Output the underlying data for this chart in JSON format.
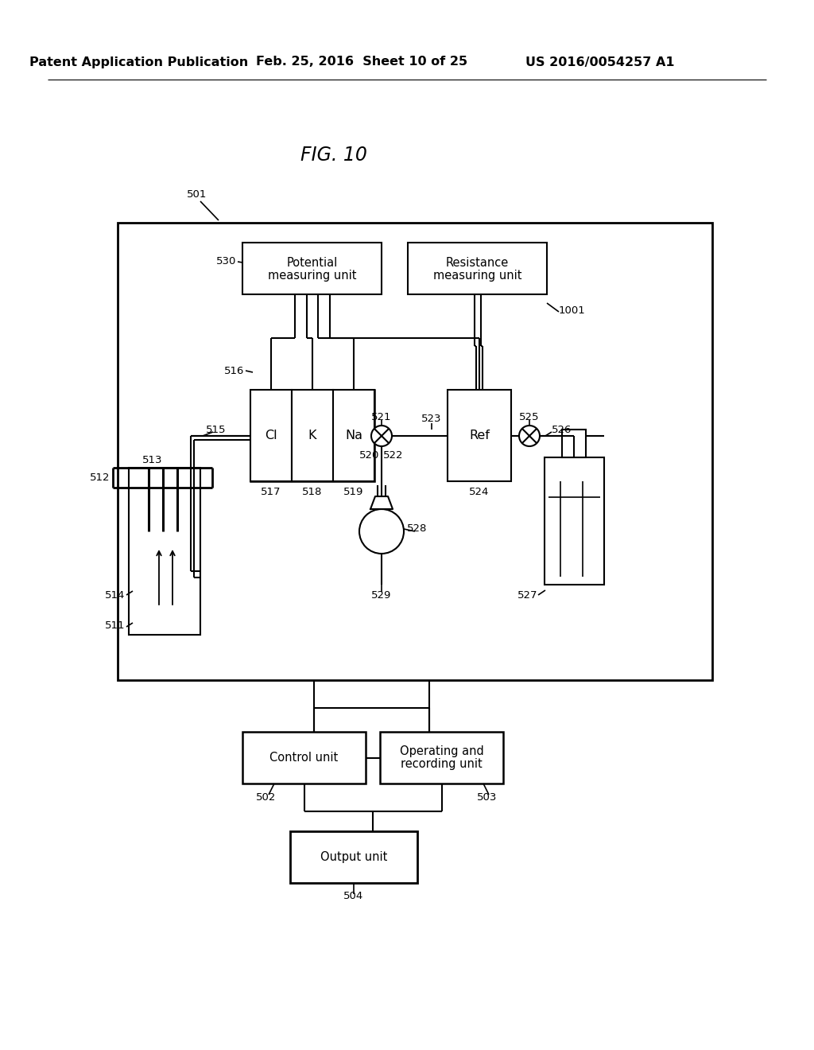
{
  "title": "FIG. 10",
  "header_left": "Patent Application Publication",
  "header_center": "Feb. 25, 2016  Sheet 10 of 25",
  "header_right": "US 2016/0054257 A1",
  "bg_color": "#ffffff",
  "line_color": "#000000",
  "font_size_header": 11.5,
  "font_size_title": 17,
  "font_size_label": 10.5,
  "font_size_num": 9.5
}
